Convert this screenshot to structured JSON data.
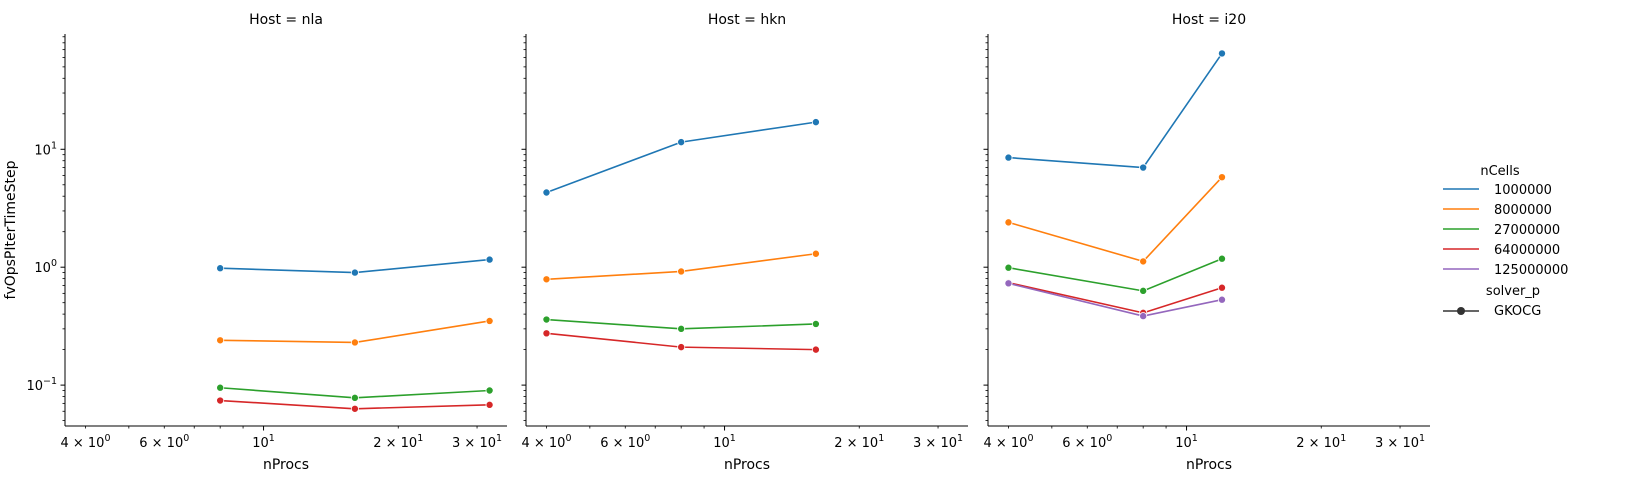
{
  "chart_data": {
    "type": "line",
    "facet_label": "Host",
    "x_scale": "log",
    "y_scale": "log",
    "xlabel": "nProcs",
    "ylabel": "fvOpsPIterTimeStep",
    "xlim": [
      3.6,
      35
    ],
    "ylim": [
      0.045,
      95
    ],
    "x_ticks": [
      {
        "value": 4,
        "label": "4 × 10",
        "exp": "0"
      },
      {
        "value": 6,
        "label": "6 × 10",
        "exp": "0"
      },
      {
        "value": 10,
        "label": "10",
        "exp": "1"
      },
      {
        "value": 20,
        "label": "2 × 10",
        "exp": "1"
      },
      {
        "value": 30,
        "label": "3 × 10",
        "exp": "1"
      }
    ],
    "y_ticks": [
      {
        "value": 0.1,
        "label": "10",
        "exp": "−1"
      },
      {
        "value": 1,
        "label": "10",
        "exp": "0"
      },
      {
        "value": 10,
        "label": "10",
        "exp": "1"
      }
    ],
    "legend": {
      "title": "nCells",
      "style_title": "solver_p",
      "style_entry": "GKOCG",
      "placement": "right"
    },
    "series_colors": {
      "1000000": "#1f77b4",
      "8000000": "#ff7f0e",
      "27000000": "#2ca02c",
      "64000000": "#d62728",
      "125000000": "#9467bd"
    },
    "legend_series": [
      "1000000",
      "8000000",
      "27000000",
      "64000000",
      "125000000"
    ],
    "panels": [
      {
        "title": "Host = nla",
        "series": [
          {
            "name": "1000000",
            "x": [
              8,
              16,
              32
            ],
            "y": [
              0.98,
              0.9,
              1.16
            ]
          },
          {
            "name": "8000000",
            "x": [
              8,
              16,
              32
            ],
            "y": [
              0.24,
              0.23,
              0.35
            ]
          },
          {
            "name": "27000000",
            "x": [
              8,
              16,
              32
            ],
            "y": [
              0.095,
              0.078,
              0.09
            ]
          },
          {
            "name": "64000000",
            "x": [
              8,
              16,
              32
            ],
            "y": [
              0.074,
              0.063,
              0.068
            ]
          }
        ]
      },
      {
        "title": "Host = hkn",
        "series": [
          {
            "name": "1000000",
            "x": [
              4,
              8,
              16
            ],
            "y": [
              4.3,
              11.5,
              17.0
            ]
          },
          {
            "name": "8000000",
            "x": [
              4,
              8,
              16
            ],
            "y": [
              0.79,
              0.92,
              1.3
            ]
          },
          {
            "name": "27000000",
            "x": [
              4,
              8,
              16
            ],
            "y": [
              0.36,
              0.3,
              0.33
            ]
          },
          {
            "name": "64000000",
            "x": [
              4,
              8,
              16
            ],
            "y": [
              0.275,
              0.21,
              0.2
            ]
          }
        ]
      },
      {
        "title": "Host = i20",
        "series": [
          {
            "name": "1000000",
            "x": [
              4,
              8,
              12
            ],
            "y": [
              8.5,
              7.0,
              65.0
            ]
          },
          {
            "name": "8000000",
            "x": [
              4,
              8,
              12
            ],
            "y": [
              2.4,
              1.12,
              5.8
            ]
          },
          {
            "name": "27000000",
            "x": [
              4,
              8,
              12
            ],
            "y": [
              0.99,
              0.63,
              1.18
            ]
          },
          {
            "name": "64000000",
            "x": [
              4,
              8,
              12
            ],
            "y": [
              0.74,
              0.41,
              0.67
            ]
          },
          {
            "name": "125000000",
            "x": [
              4,
              8,
              12
            ],
            "y": [
              0.73,
              0.385,
              0.53
            ]
          }
        ]
      }
    ]
  }
}
